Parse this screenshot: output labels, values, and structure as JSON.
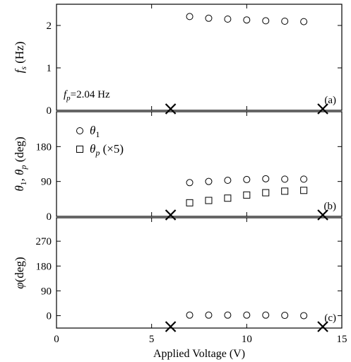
{
  "chart_data": [
    {
      "type": "scatter",
      "panel_label": "(a)",
      "ylabel": "f_s (Hz)",
      "ylabel_main": "f",
      "ylabel_sub": "s",
      "ylabel_unit": " (Hz)",
      "ylim": [
        0,
        2.5
      ],
      "yticks": [
        0,
        1,
        2
      ],
      "ytick_labels": [
        "0",
        "1",
        "2"
      ],
      "annotation": {
        "main": "f",
        "sub": "p",
        "rest": "=2.04 Hz"
      },
      "series": [
        {
          "marker": "circle",
          "x": [
            7,
            8,
            9,
            10,
            11,
            12,
            13
          ],
          "y": [
            2.21,
            2.17,
            2.15,
            2.13,
            2.11,
            2.1,
            2.09
          ]
        }
      ],
      "markers_x": [
        6,
        14
      ]
    },
    {
      "type": "scatter",
      "panel_label": "(b)",
      "ylabel": "θ1, θp (deg)",
      "ylabel_parts": [
        {
          "t": "θ",
          "sub": "1"
        },
        {
          "t": ", θ",
          "sub": "p"
        },
        {
          "t": " (deg)",
          "sub": ""
        }
      ],
      "ylim": [
        0,
        270
      ],
      "yticks": [
        0,
        90,
        180
      ],
      "ytick_labels": [
        "0",
        "90",
        "180"
      ],
      "series": [
        {
          "legend_main": "θ",
          "legend_sub": "1",
          "legend_rest": "",
          "marker": "circle",
          "x": [
            7,
            8,
            9,
            10,
            11,
            12,
            13
          ],
          "y": [
            87,
            90,
            93,
            95,
            97,
            96,
            96
          ]
        },
        {
          "legend_main": "θ",
          "legend_sub": "p",
          "legend_rest": " (×5)",
          "marker": "square",
          "x": [
            7,
            8,
            9,
            10,
            11,
            12,
            13
          ],
          "y": [
            35,
            41,
            47,
            55,
            61,
            65,
            67
          ]
        }
      ],
      "markers_x": [
        6,
        14
      ]
    },
    {
      "type": "scatter",
      "panel_label": "(c)",
      "ylabel": "φ(deg)",
      "ylim": [
        -45,
        355
      ],
      "yticks": [
        0,
        90,
        180,
        270
      ],
      "ytick_labels": [
        "0",
        "90",
        "180",
        "270"
      ],
      "series": [
        {
          "marker": "circle",
          "x": [
            7,
            8,
            9,
            10,
            11,
            12,
            13
          ],
          "y": [
            2,
            2,
            2,
            2,
            2,
            1,
            0
          ]
        }
      ],
      "markers_x": [
        6,
        14
      ]
    }
  ],
  "x_axis": {
    "label": "Applied Voltage (V)",
    "xlim": [
      0,
      15
    ],
    "ticks": [
      0,
      5,
      10,
      15
    ],
    "tick_labels": [
      "0",
      "5",
      "10",
      "15"
    ]
  }
}
